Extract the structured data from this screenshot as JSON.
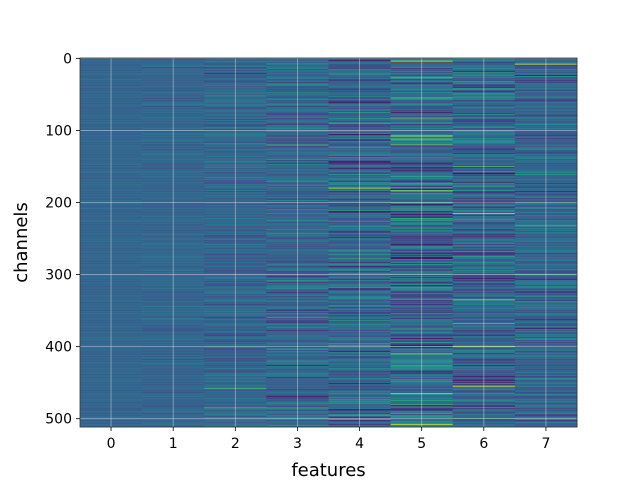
{
  "chart_data": {
    "type": "heatmap",
    "title": "",
    "xlabel": "features",
    "ylabel": "channels",
    "x_categories": [
      "0",
      "1",
      "2",
      "3",
      "4",
      "5",
      "6",
      "7"
    ],
    "y_ticks": [
      0,
      100,
      200,
      300,
      400,
      500
    ],
    "ylim": [
      512,
      0
    ],
    "n_rows": 512,
    "colormap": "viridis",
    "grid": true,
    "columns": [
      {
        "feature": 0,
        "variance": 0.015,
        "streaks": []
      },
      {
        "feature": 1,
        "variance": 0.03,
        "streaks": []
      },
      {
        "feature": 2,
        "variance": 0.06,
        "streaks": [
          [
            458,
            0.68
          ],
          [
            485,
            0.7
          ]
        ]
      },
      {
        "feature": 3,
        "variance": 0.085,
        "streaks": [
          [
            120,
            0.68
          ],
          [
            360,
            0.66
          ],
          [
            485,
            0.7
          ]
        ]
      },
      {
        "feature": 4,
        "variance": 0.11,
        "streaks": [
          [
            90,
            0.74
          ],
          [
            180,
            0.93
          ],
          [
            495,
            0.72
          ],
          [
            501,
            0.7
          ]
        ]
      },
      {
        "feature": 5,
        "variance": 0.14,
        "streaks": [
          [
            5,
            0.92
          ],
          [
            108,
            0.8
          ],
          [
            112,
            0.85
          ],
          [
            120,
            0.8
          ],
          [
            183,
            0.82
          ],
          [
            258,
            0.03
          ],
          [
            410,
            0.85
          ],
          [
            465,
            0.88
          ],
          [
            508,
            0.92
          ]
        ]
      },
      {
        "feature": 6,
        "variance": 0.12,
        "streaks": [
          [
            150,
            0.74
          ],
          [
            215,
            0.96
          ],
          [
            270,
            0.05
          ],
          [
            335,
            0.82
          ],
          [
            368,
            0.74
          ],
          [
            400,
            0.88
          ],
          [
            455,
            0.9
          ]
        ]
      },
      {
        "feature": 7,
        "variance": 0.085,
        "streaks": [
          [
            8,
            0.95
          ],
          [
            232,
            0.62
          ]
        ]
      }
    ]
  }
}
